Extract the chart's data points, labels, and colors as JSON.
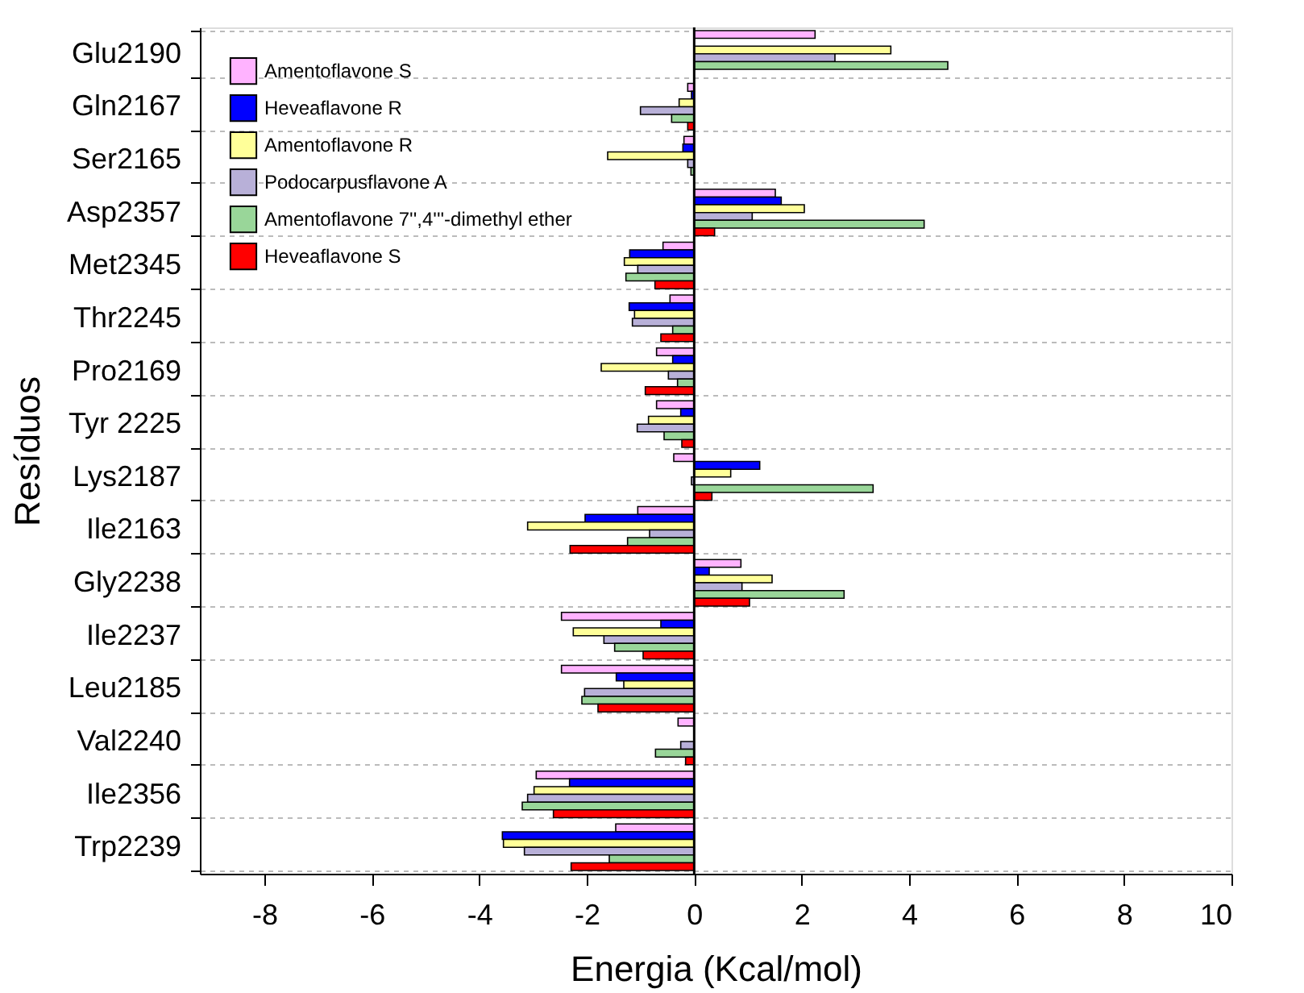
{
  "chart_data": {
    "type": "bar",
    "orientation": "horizontal",
    "xlabel": "Energia (Kcal/mol)",
    "ylabel": "Resíduos",
    "categories": [
      "Glu2190",
      "Gln2167",
      "Ser2165",
      "Asp2357",
      "Met2345",
      "Thr2245",
      "Pro2169",
      "Tyr 2225",
      "Lys2187",
      "Ile2163",
      "Gly2238",
      "Ile2237",
      "Leu2185",
      "Val2240",
      "Ile2356",
      "Trp2239"
    ],
    "series": [
      {
        "name": "Amentoflavone S",
        "color": "#ffb3ff",
        "values": [
          2.25,
          -0.12,
          -0.19,
          1.51,
          -0.58,
          -0.45,
          -0.7,
          -0.7,
          -0.38,
          -1.05,
          0.87,
          -2.47,
          -2.47,
          -0.3,
          -2.94,
          -1.46
        ]
      },
      {
        "name": "Heveaflavone R",
        "color": "#0000ff",
        "values": [
          null,
          -0.05,
          -0.21,
          1.62,
          -1.2,
          -1.21,
          -0.4,
          -0.25,
          1.22,
          -2.03,
          0.28,
          -0.62,
          -1.45,
          null,
          -2.32,
          -3.57
        ]
      },
      {
        "name": "Amentoflavone R",
        "color": "#ffff99",
        "values": [
          3.66,
          -0.28,
          -1.61,
          2.05,
          -1.3,
          -1.11,
          -1.73,
          -0.85,
          0.68,
          -3.1,
          1.45,
          -2.25,
          -1.31,
          null,
          -2.98,
          -3.55
        ]
      },
      {
        "name": "Podocarpusflavone A",
        "color": "#b8b0d8",
        "values": [
          2.62,
          -1.0,
          -0.12,
          1.08,
          -1.05,
          -1.15,
          -0.48,
          -1.06,
          -0.05,
          -0.83,
          0.89,
          -1.68,
          -2.04,
          -0.25,
          -3.1,
          -3.16
        ]
      },
      {
        "name": "Amentoflavone 7'',4'''-dimethyl ether",
        "color": "#99d699",
        "values": [
          4.72,
          -0.42,
          -0.06,
          4.28,
          -1.27,
          -0.4,
          -0.31,
          -0.56,
          3.33,
          -1.24,
          2.79,
          -1.48,
          -2.09,
          -0.72,
          -3.2,
          -1.58
        ]
      },
      {
        "name": "Heveaflavone S",
        "color": "#ff0000",
        "values": [
          null,
          -0.12,
          null,
          0.38,
          -0.73,
          -0.62,
          -0.91,
          -0.23,
          0.33,
          -2.31,
          1.03,
          -0.95,
          -1.79,
          -0.16,
          -2.62,
          -2.29
        ]
      }
    ],
    "xlim": [
      -9.2,
      10
    ],
    "xticks": [
      -8,
      -6,
      -4,
      -2,
      0,
      2,
      4,
      6,
      8,
      10
    ],
    "ref_lines": [
      {
        "axis": "x",
        "value": 0,
        "color": "#000000"
      }
    ],
    "grid": "y",
    "legend": "top left"
  }
}
